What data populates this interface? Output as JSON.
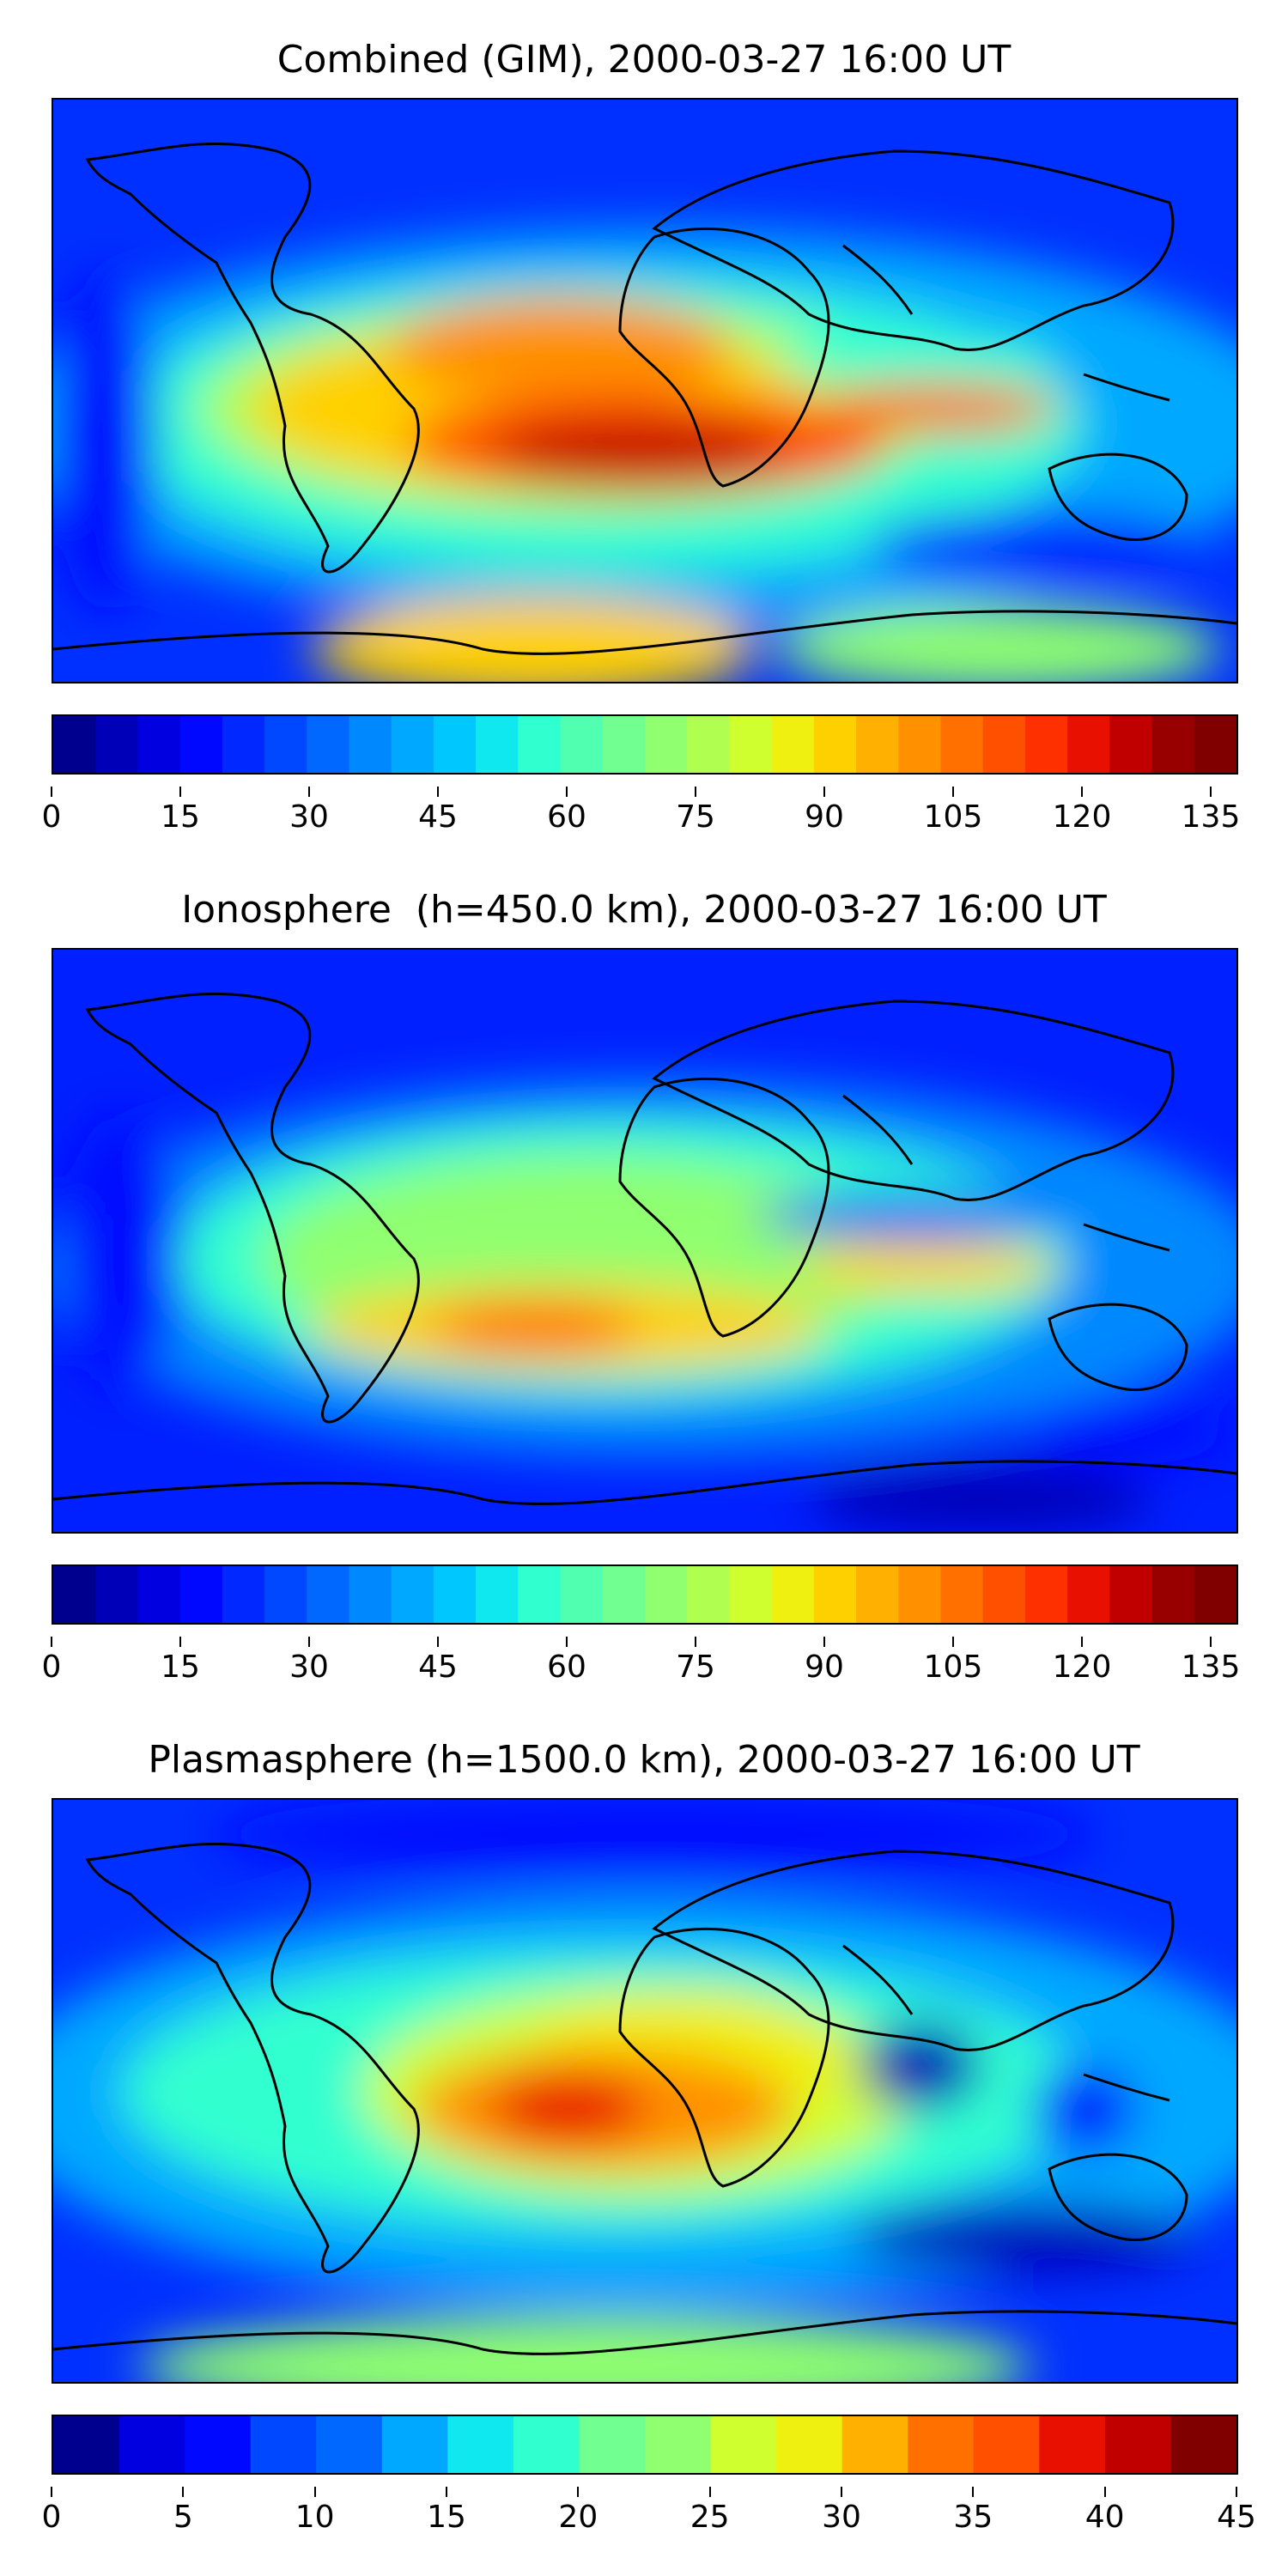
{
  "panels": [
    {
      "title": "Combined (GIM), 2000-03-27 16:00 UT",
      "colorbar": {
        "min": 0,
        "max": 138,
        "ticks": [
          "0",
          "15",
          "30",
          "45",
          "60",
          "75",
          "90",
          "105",
          "120",
          "135"
        ],
        "tick_values": [
          0,
          15,
          30,
          45,
          60,
          75,
          90,
          105,
          120,
          135
        ]
      }
    },
    {
      "title": "Ionosphere  (h=450.0 km), 2000-03-27 16:00 UT",
      "colorbar": {
        "min": 0,
        "max": 138,
        "ticks": [
          "0",
          "15",
          "30",
          "45",
          "60",
          "75",
          "90",
          "105",
          "120",
          "135"
        ],
        "tick_values": [
          0,
          15,
          30,
          45,
          60,
          75,
          90,
          105,
          120,
          135
        ]
      }
    },
    {
      "title": "Plasmasphere (h=1500.0 km), 2000-03-27 16:00 UT",
      "colorbar": {
        "min": 0,
        "max": 45,
        "ticks": [
          "0",
          "5",
          "10",
          "15",
          "20",
          "25",
          "30",
          "35",
          "40",
          "45"
        ],
        "tick_values": [
          0,
          5,
          10,
          15,
          20,
          25,
          30,
          35,
          40,
          45
        ]
      }
    }
  ],
  "colormap": [
    "#00008f",
    "#0000b8",
    "#0000e0",
    "#0008ff",
    "#0028ff",
    "#0048ff",
    "#0068ff",
    "#0088ff",
    "#00a8ff",
    "#00c8ff",
    "#10e8f0",
    "#30ffd0",
    "#50ffb0",
    "#70ff90",
    "#90ff70",
    "#b0ff50",
    "#d0ff30",
    "#f0f010",
    "#ffd000",
    "#ffb000",
    "#ff9000",
    "#ff7000",
    "#ff5000",
    "#ff3000",
    "#e81000",
    "#c00000",
    "#980000",
    "#800000"
  ]
}
